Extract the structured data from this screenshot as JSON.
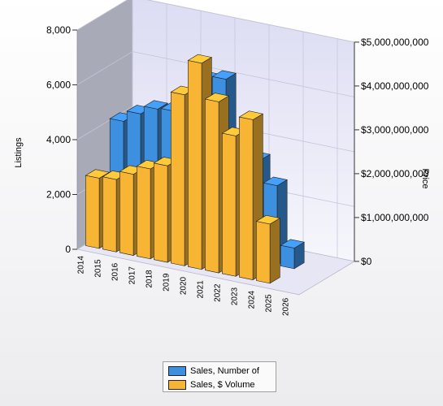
{
  "chart_data": {
    "type": "bar",
    "view": "3d",
    "categories": [
      "2014",
      "2015",
      "2016",
      "2017",
      "2018",
      "2019",
      "2020",
      "2021",
      "2022",
      "2023",
      "2024",
      "2025",
      "2026"
    ],
    "series": [
      {
        "name": "Sales, Number of",
        "axis": "left",
        "color": "#3d8fe0",
        "values": [
          4100,
          4500,
          4800,
          4850,
          4750,
          6250,
          6400,
          3800,
          3700,
          2900,
          750,
          0,
          0
        ]
      },
      {
        "name": "Sales, $ Volume",
        "axis": "right",
        "color": "#f7b533",
        "values": [
          1600000000,
          1650000000,
          1850000000,
          2050000000,
          2200000000,
          3900000000,
          4700000000,
          3900000000,
          3200000000,
          3650000000,
          1350000000,
          0,
          0
        ]
      }
    ],
    "ylabel": "Listings",
    "y2label": "Price",
    "ylim": [
      0,
      8000
    ],
    "y2lim": [
      0,
      5000000000
    ],
    "yticks": [
      "0",
      "2,000",
      "4,000",
      "6,000",
      "8,000"
    ],
    "y2ticks": [
      "$0",
      "$1,000,000,000",
      "$2,000,000,000",
      "$3,000,000,000",
      "$4,000,000,000",
      "$5,000,000,000"
    ],
    "grid": true,
    "legend": "bottom-center"
  }
}
